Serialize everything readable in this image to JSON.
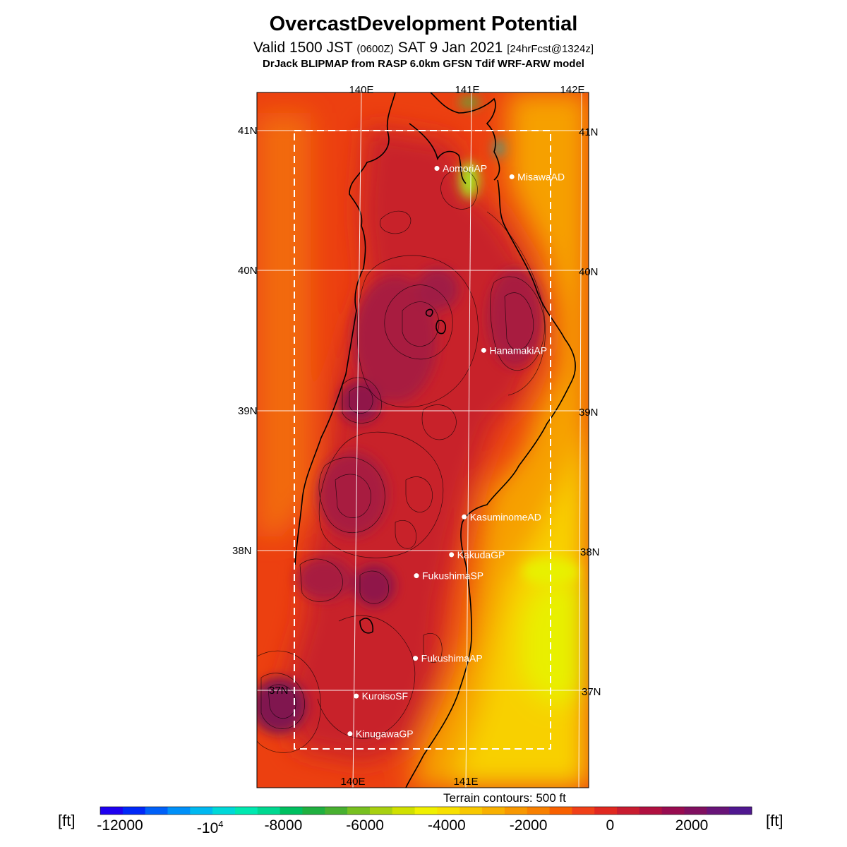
{
  "header": {
    "title": "OvercastDevelopment Potential",
    "valid_prefix": "Valid 1500 JST",
    "valid_z": "(0600Z)",
    "valid_date": "SAT 9 Jan 2021",
    "forecast": "[24hrFcst@1324z]",
    "model_line": "DrJack BLIPMAP from RASP 6.0km GFSN Tdif WRF-ARW model"
  },
  "map": {
    "lon_labels_top": [
      "140E",
      "141E",
      "142E"
    ],
    "lon_labels_bottom": [
      "140E",
      "141E"
    ],
    "lat_labels": [
      "41N",
      "40N",
      "39N",
      "38N",
      "37N"
    ],
    "stations": [
      {
        "name": "AomoriAP",
        "lon": 140.69,
        "lat": 40.73
      },
      {
        "name": "MisawaAD",
        "lon": 141.37,
        "lat": 40.67
      },
      {
        "name": "HanamakiAP",
        "lon": 141.13,
        "lat": 39.43
      },
      {
        "name": "KasuminomeAD",
        "lon": 140.97,
        "lat": 38.24
      },
      {
        "name": "KakudaGP",
        "lon": 140.86,
        "lat": 37.97
      },
      {
        "name": "FukushimaSP",
        "lon": 140.55,
        "lat": 37.82
      },
      {
        "name": "FukushimaAP",
        "lon": 140.55,
        "lat": 37.23
      },
      {
        "name": "KuroisoSF",
        "lon": 140.03,
        "lat": 36.96
      },
      {
        "name": "KinugawaGP",
        "lon": 139.98,
        "lat": 36.69
      }
    ],
    "terrain_note": "Terrain contours: 500 ft",
    "colors": {
      "land_high": "#c21c28",
      "land_mid": "#e0331e",
      "sea_west": "#ec4010",
      "sea_east": "#f8b800",
      "coast": "#000000",
      "grid": "#ffffff"
    }
  },
  "colorbar": {
    "unit": "[ft]",
    "labels": [
      {
        "text": "-12000",
        "value": -12000
      },
      {
        "text": "-10",
        "sup": "4",
        "value": -10000
      },
      {
        "text": "-8000",
        "value": -8000
      },
      {
        "text": "-6000",
        "value": -6000
      },
      {
        "text": "-4000",
        "value": -4000
      },
      {
        "text": "-2000",
        "value": -2000
      },
      {
        "text": "0",
        "value": 0
      },
      {
        "text": "2000",
        "value": 2000
      }
    ],
    "colors": [
      "#1e00f0",
      "#0028f8",
      "#0060f8",
      "#0090f8",
      "#00b8f0",
      "#00d8d8",
      "#00e8b0",
      "#00d890",
      "#00c060",
      "#20b040",
      "#48b030",
      "#78c020",
      "#a8d010",
      "#d0e000",
      "#f0f000",
      "#f8e000",
      "#f8c800",
      "#f8b000",
      "#f89800",
      "#f88000",
      "#f86000",
      "#f04018",
      "#e02820",
      "#c81c30",
      "#b01040",
      "#980c50",
      "#801060",
      "#681478",
      "#501890"
    ]
  }
}
